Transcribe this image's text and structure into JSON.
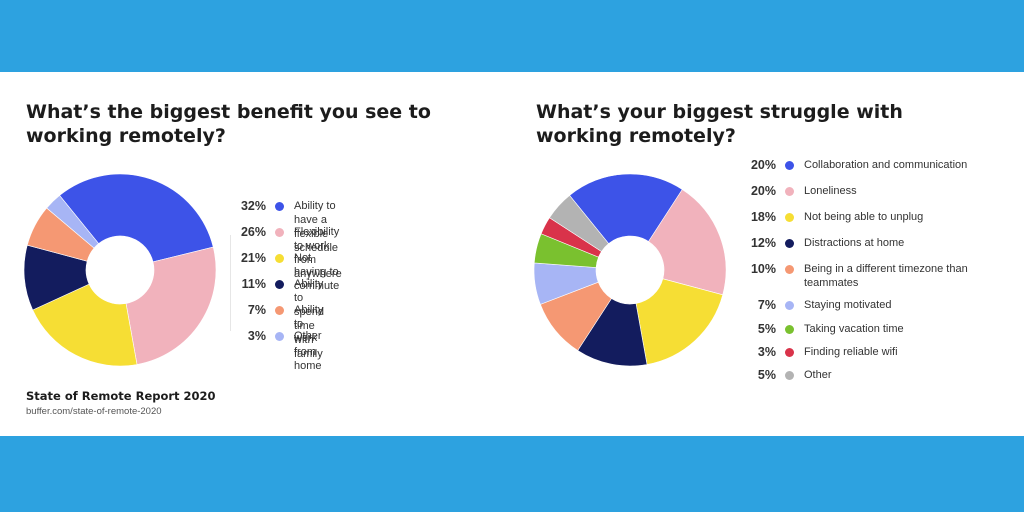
{
  "chart_data": [
    {
      "type": "pie",
      "title": "What’s the biggest benefit you see to working remotely?",
      "categories": [
        "Ability to have a flexible schedule",
        "Flexibility to work from anywhere",
        "Not having to commute",
        "Ability to spend time with family",
        "Ability to work from home",
        "Other"
      ],
      "values": [
        32,
        26,
        21,
        11,
        7,
        3
      ],
      "labels": [
        "32%",
        "26%",
        "21%",
        "11%",
        "7%",
        "3%"
      ],
      "colors": [
        "#3d53e8",
        "#f1b2bc",
        "#f6de34",
        "#131c5e",
        "#f59873",
        "#a7b5f5"
      ],
      "legend_position": "right"
    },
    {
      "type": "pie",
      "title": "What’s your biggest struggle with working remotely?",
      "categories": [
        "Collaboration and communication",
        "Loneliness",
        "Not being able to unplug",
        "Distractions at home",
        "Being in a different timezone than teammates",
        "Staying motivated",
        "Taking vacation time",
        "Finding reliable wifi",
        "Other"
      ],
      "values": [
        20,
        20,
        18,
        12,
        10,
        7,
        5,
        3,
        5
      ],
      "labels": [
        "20%",
        "20%",
        "18%",
        "12%",
        "10%",
        "7%",
        "5%",
        "3%",
        "5%"
      ],
      "colors": [
        "#3d53e8",
        "#f1b2bc",
        "#f6de34",
        "#131c5e",
        "#f59873",
        "#a7b5f5",
        "#7ac12f",
        "#d9334a",
        "#b3b3b3"
      ],
      "legend_position": "right"
    }
  ],
  "footer": {
    "title": "State of Remote Report 2020",
    "url": "buffer.com/state-of-remote-2020"
  }
}
